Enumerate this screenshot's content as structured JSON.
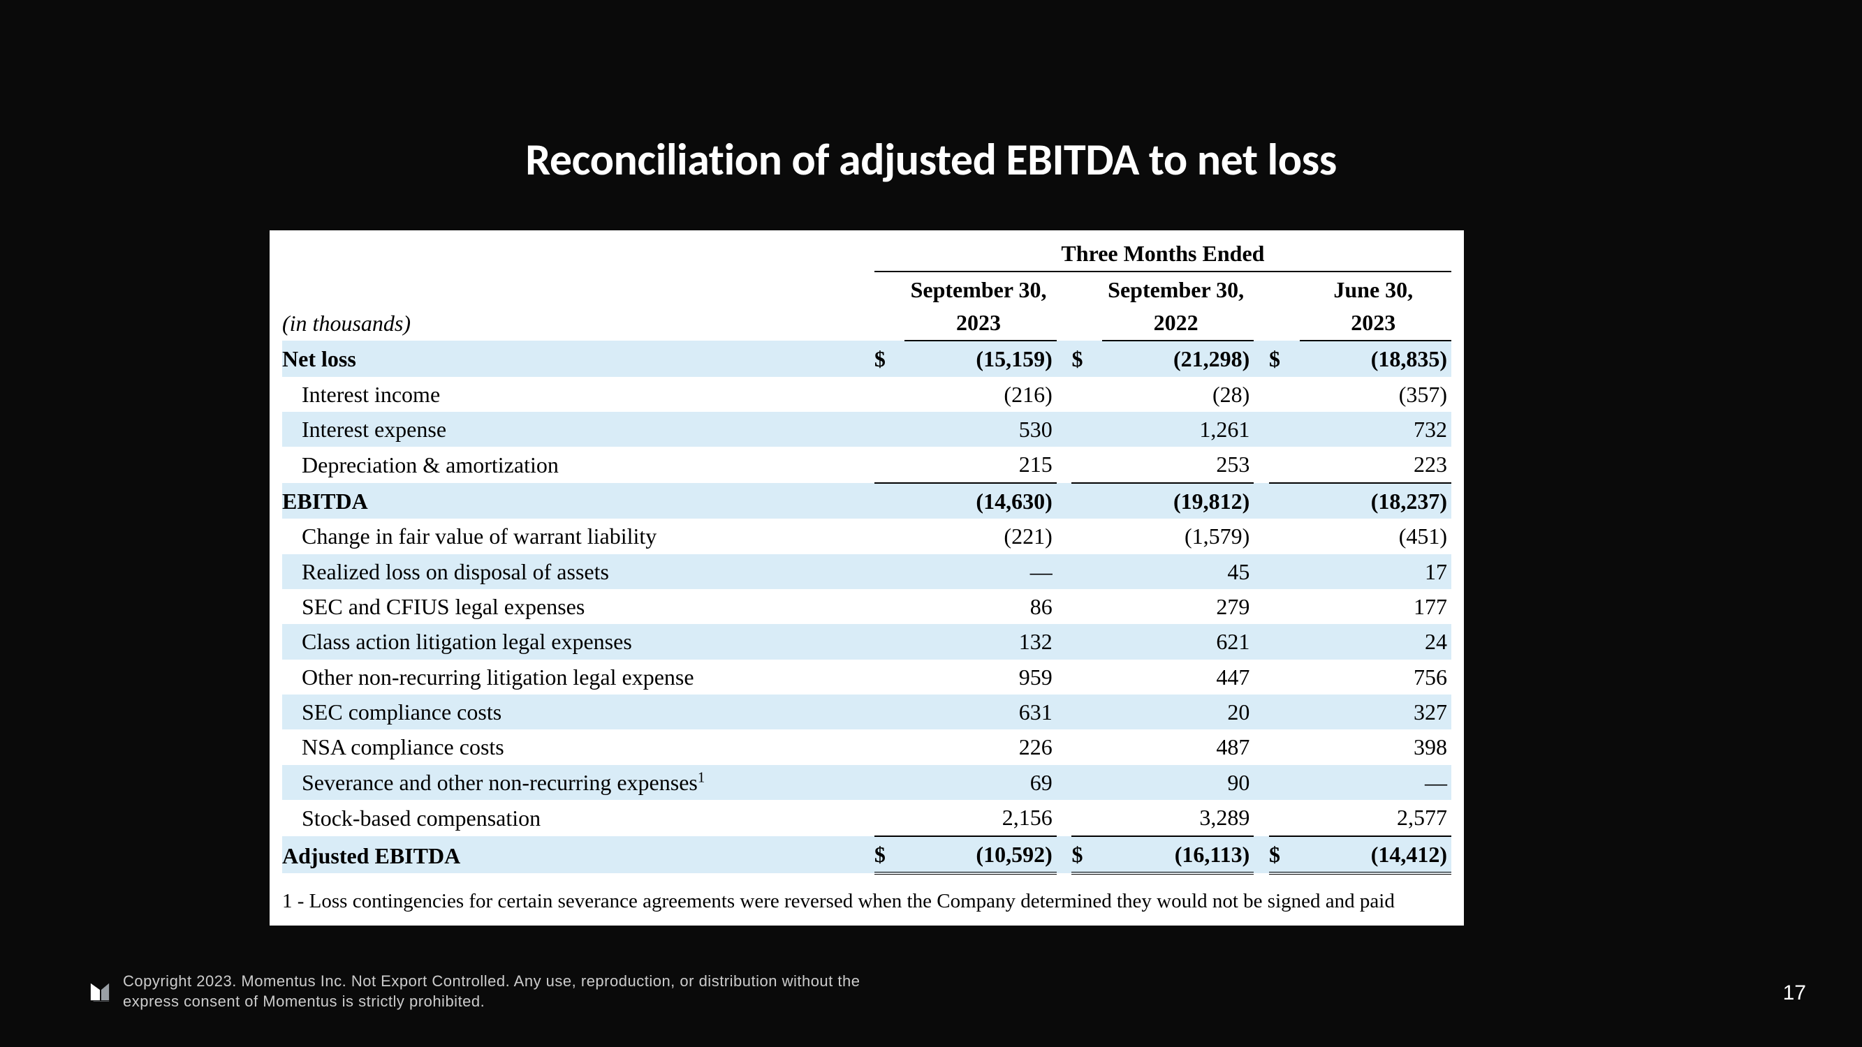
{
  "title": "Reconciliation of adjusted EBITDA to net loss",
  "units_label": "(in thousands)",
  "period_header": "Three Months Ended",
  "columns": [
    "September 30, 2023",
    "September 30, 2022",
    "June 30, 2023"
  ],
  "currency_symbol": "$",
  "dash": "—",
  "colors": {
    "slide_background": "#0a0a0a",
    "card_background": "#ffffff",
    "row_shade": "#d9ecf7",
    "text_light": "#ffffff",
    "text_dark": "#000000",
    "footer_text": "#cccccc"
  },
  "rows": [
    {
      "label": "Net loss",
      "values": [
        "(15,159)",
        "(21,298)",
        "(18,835)"
      ],
      "bold": true,
      "shade": true,
      "currency": true
    },
    {
      "label": "Interest income",
      "values": [
        "(216)",
        "(28)",
        "(357)"
      ],
      "indent": true
    },
    {
      "label": "Interest expense",
      "values": [
        "530",
        "1,261",
        "732"
      ],
      "indent": true,
      "shade": true
    },
    {
      "label": "Depreciation & amortization",
      "values": [
        "215",
        "253",
        "223"
      ],
      "indent": true,
      "underline": true
    },
    {
      "label": "EBITDA",
      "values": [
        "(14,630)",
        "(19,812)",
        "(18,237)"
      ],
      "bold": true,
      "shade": true
    },
    {
      "label": "Change in fair value of warrant liability",
      "values": [
        "(221)",
        "(1,579)",
        "(451)"
      ],
      "indent": true
    },
    {
      "label": "Realized loss on disposal of assets",
      "values": [
        "—",
        "45",
        "17"
      ],
      "indent": true,
      "shade": true
    },
    {
      "label": "SEC and CFIUS legal expenses",
      "values": [
        "86",
        "279",
        "177"
      ],
      "indent": true
    },
    {
      "label": "Class action litigation legal expenses",
      "values": [
        "132",
        "621",
        "24"
      ],
      "indent": true,
      "shade": true
    },
    {
      "label": "Other non-recurring litigation legal expense",
      "values": [
        "959",
        "447",
        "756"
      ],
      "indent": true
    },
    {
      "label": "SEC compliance costs",
      "values": [
        "631",
        "20",
        "327"
      ],
      "indent": true,
      "shade": true
    },
    {
      "label": "NSA compliance costs",
      "values": [
        "226",
        "487",
        "398"
      ],
      "indent": true
    },
    {
      "label": "Severance and other non-recurring expenses",
      "sup": "1",
      "values": [
        "69",
        "90",
        "—"
      ],
      "indent": true,
      "shade": true
    },
    {
      "label": "Stock-based compensation",
      "values": [
        "2,156",
        "3,289",
        "2,577"
      ],
      "indent": true,
      "underline": true
    },
    {
      "label": "Adjusted EBITDA",
      "values": [
        "(10,592)",
        "(16,113)",
        "(14,412)"
      ],
      "bold": true,
      "shade": true,
      "currency": true,
      "double_rule": true
    }
  ],
  "footnote": "1 - Loss contingencies for certain severance agreements were reversed when the Company determined they would not be signed and paid",
  "copyright": "Copyright 2023. Momentus Inc. Not Export Controlled. Any use, reproduction, or distribution without the express consent of Momentus is strictly prohibited.",
  "page_number": "17"
}
